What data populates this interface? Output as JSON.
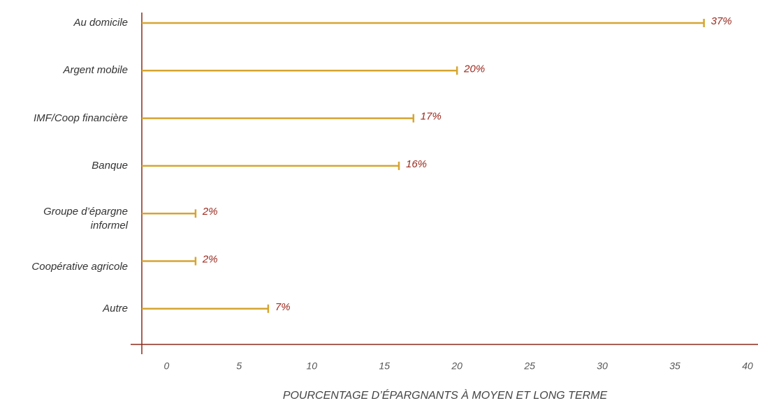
{
  "chart_data": {
    "type": "bar",
    "orientation": "horizontal",
    "categories": [
      "Au domicile",
      "Argent mobile",
      "IMF/Coop financière",
      "Banque",
      "Groupe d’épargne informel",
      "Coopérative agricole",
      "Autre"
    ],
    "values": [
      37,
      20,
      17,
      16,
      2,
      2,
      7
    ],
    "value_labels": [
      "37%",
      "20%",
      "17%",
      "16%",
      "2%",
      "2%",
      "7%"
    ],
    "color": "#d6a530",
    "label_color": "#9b2a1f",
    "axis_color": "#8b2a1a",
    "x_label": "POURCENTAGE D’ÉPARGNANTS À MOYEN ET LONG TERME",
    "xlim": [
      -1.7,
      40
    ],
    "xticks": [
      0,
      5,
      10,
      15,
      20,
      25,
      30,
      35,
      40
    ],
    "grid": false
  }
}
